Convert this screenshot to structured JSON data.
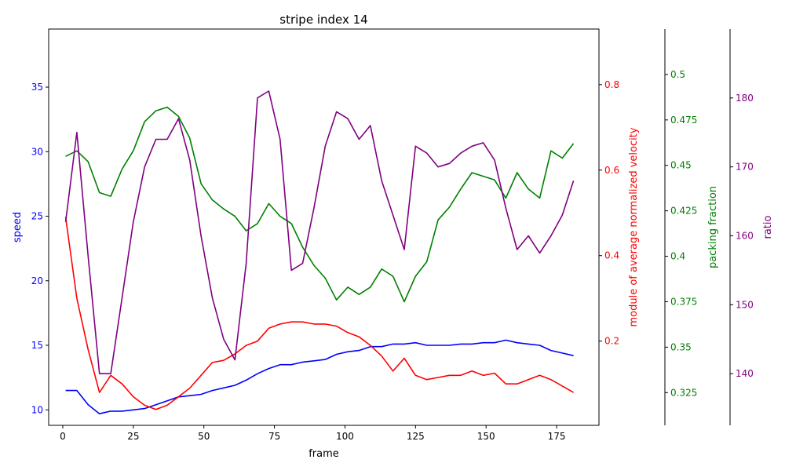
{
  "chart_data": {
    "type": "line",
    "title": "stripe index 14",
    "xlabel": "frame",
    "xlim": [
      -5,
      190
    ],
    "xticks": [
      0,
      25,
      50,
      75,
      100,
      125,
      150,
      175
    ],
    "x": [
      1,
      5,
      9,
      13,
      17,
      21,
      25,
      29,
      33,
      37,
      41,
      45,
      49,
      53,
      57,
      61,
      65,
      69,
      73,
      77,
      81,
      85,
      89,
      93,
      97,
      101,
      105,
      109,
      113,
      117,
      121,
      125,
      129,
      133,
      137,
      141,
      145,
      149,
      153,
      157,
      161,
      165,
      169,
      173,
      177,
      181
    ],
    "axes": [
      {
        "id": "speed",
        "label": "speed",
        "color": "#0000ff",
        "lim": [
          8.8,
          39.5
        ],
        "ticks": [
          10,
          15,
          20,
          25,
          30,
          35
        ],
        "position": "left"
      },
      {
        "id": "velocity",
        "label": "module of average normalized velocity",
        "color": "#ff0000",
        "lim": [
          0.003,
          0.93
        ],
        "ticks": [
          0.2,
          0.4,
          0.6,
          0.8
        ],
        "position": "right"
      },
      {
        "id": "packing",
        "label": "packing fraction",
        "color": "#008000",
        "lim": [
          0.307,
          0.525
        ],
        "ticks": [
          0.325,
          0.35,
          0.375,
          0.4,
          0.425,
          0.45,
          0.475,
          0.5
        ],
        "position": "right-outer"
      },
      {
        "id": "ratio",
        "label": "ratio",
        "color": "#800080",
        "lim": [
          132.5,
          190
        ],
        "ticks": [
          140,
          150,
          160,
          170,
          180
        ],
        "position": "right-outer"
      }
    ],
    "series": [
      {
        "axis": "speed",
        "color": "#0000ff",
        "values": [
          11.5,
          11.5,
          10.4,
          9.7,
          9.9,
          9.9,
          10.0,
          10.1,
          10.4,
          10.7,
          11.0,
          11.1,
          11.2,
          11.5,
          11.7,
          11.9,
          12.3,
          12.8,
          13.2,
          13.5,
          13.5,
          13.7,
          13.8,
          13.9,
          14.3,
          14.5,
          14.6,
          14.9,
          14.9,
          15.1,
          15.1,
          15.2,
          15.0,
          15.0,
          15.0,
          15.1,
          15.1,
          15.2,
          15.2,
          15.4,
          15.2,
          15.1,
          15.0,
          14.6,
          14.4,
          14.2
        ]
      },
      {
        "axis": "velocity",
        "color": "#ff0000",
        "values": [
          0.49,
          0.3,
          0.18,
          0.08,
          0.12,
          0.1,
          0.07,
          0.05,
          0.04,
          0.05,
          0.07,
          0.09,
          0.12,
          0.15,
          0.155,
          0.17,
          0.19,
          0.2,
          0.23,
          0.24,
          0.245,
          0.245,
          0.24,
          0.24,
          0.235,
          0.22,
          0.21,
          0.19,
          0.165,
          0.13,
          0.16,
          0.12,
          0.11,
          0.115,
          0.12,
          0.12,
          0.13,
          0.12,
          0.125,
          0.1,
          0.1,
          0.11,
          0.12,
          0.11,
          0.095,
          0.08
        ]
      },
      {
        "axis": "packing",
        "color": "#008000",
        "values": [
          0.455,
          0.458,
          0.452,
          0.435,
          0.433,
          0.448,
          0.458,
          0.474,
          0.48,
          0.482,
          0.477,
          0.465,
          0.44,
          0.431,
          0.426,
          0.422,
          0.414,
          0.418,
          0.429,
          0.422,
          0.418,
          0.405,
          0.395,
          0.388,
          0.376,
          0.383,
          0.379,
          0.383,
          0.393,
          0.389,
          0.375,
          0.389,
          0.397,
          0.42,
          0.427,
          0.437,
          0.446,
          0.444,
          0.442,
          0.432,
          0.446,
          0.437,
          0.432,
          0.458,
          0.454,
          0.462
        ]
      },
      {
        "axis": "ratio",
        "color": "#800080",
        "values": [
          162,
          175,
          157,
          140,
          140,
          151,
          162,
          170,
          174,
          174,
          177,
          171,
          160,
          151,
          145,
          142,
          156,
          180,
          181,
          174,
          155,
          156,
          164,
          173,
          178,
          177,
          174,
          176,
          168,
          163,
          158,
          173,
          172,
          170,
          170.5,
          172,
          173,
          173.5,
          171,
          164,
          158,
          160,
          157.5,
          160,
          163,
          168
        ]
      }
    ]
  }
}
